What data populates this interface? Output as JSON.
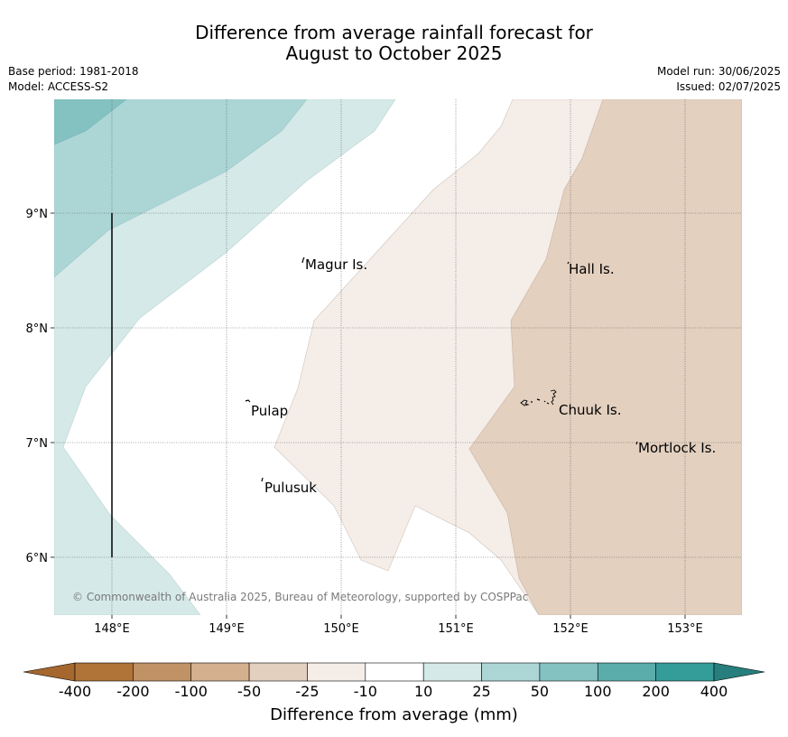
{
  "title_line1": "Difference from average rainfall forecast for",
  "title_line2": "August to October 2025",
  "base_period": "Base period: 1981-2018",
  "model": "Model: ACCESS-S2",
  "model_run": "Model run: 30/06/2025",
  "issued": "Issued: 02/07/2025",
  "lon_labels": [
    "148°E",
    "149°E",
    "150°E",
    "151°E",
    "152°E",
    "153°E"
  ],
  "lat_labels": [
    "9°N",
    "8°N",
    "7°N",
    "6°N"
  ],
  "places": {
    "magur": "Magur Is.",
    "hall": "Hall Is.",
    "pulap": "Pulap",
    "chuuk": "Chuuk Is.",
    "mortlock": "Mortlock Is.",
    "pulusuk": "Pulusuk"
  },
  "copyright": "© Commonwealth of Australia 2025, Bureau of Meteorology, supported by COSPPac",
  "colorbar": {
    "title": "Difference from average (mm)",
    "ticks": [
      "-400",
      "-200",
      "-100",
      "-50",
      "-25",
      "-10",
      "10",
      "25",
      "50",
      "100",
      "200",
      "400"
    ],
    "colors": [
      "#a5672e",
      "#b07438",
      "#c19265",
      "#d4b08f",
      "#e3d0bf",
      "#f5ede8",
      "#ffffff",
      "#d5e9e8",
      "#acd6d5",
      "#83c2c0",
      "#5aadab",
      "#349c99",
      "#267f7c"
    ]
  },
  "map_colors": {
    "brown_25": "#f5ede8",
    "brown_50": "#e3d0bf",
    "teal_10": "#d5e9e8",
    "teal_25": "#acd6d5",
    "teal_50": "#83c2c0"
  }
}
